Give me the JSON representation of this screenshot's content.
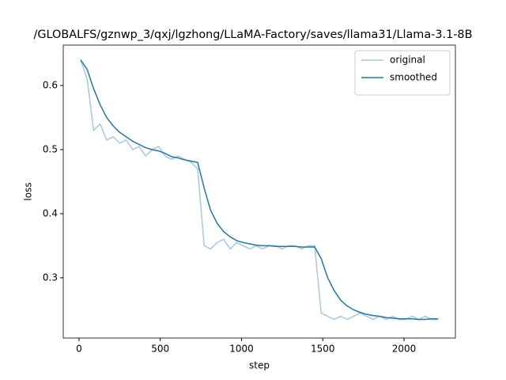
{
  "chart_data": {
    "type": "line",
    "title": "/GLOBALFS/gznwp_3/qxj/lgzhong/LLaMA-Factory/saves/llama31/Llama-3.1-8B",
    "x_label": "step",
    "y_label": "loss",
    "x": [
      10,
      50,
      90,
      130,
      170,
      210,
      250,
      290,
      330,
      370,
      410,
      450,
      490,
      530,
      570,
      610,
      650,
      690,
      730,
      770,
      810,
      850,
      890,
      930,
      970,
      1010,
      1050,
      1090,
      1130,
      1170,
      1210,
      1250,
      1290,
      1330,
      1370,
      1410,
      1450,
      1490,
      1530,
      1570,
      1610,
      1650,
      1690,
      1730,
      1770,
      1810,
      1850,
      1890,
      1930,
      1970,
      2010,
      2050,
      2090,
      2130,
      2170,
      2210
    ],
    "series": [
      {
        "name": "original",
        "color": "#a6c8e0",
        "values": [
          0.64,
          0.61,
          0.53,
          0.54,
          0.515,
          0.52,
          0.51,
          0.515,
          0.5,
          0.505,
          0.49,
          0.5,
          0.505,
          0.49,
          0.485,
          0.49,
          0.485,
          0.48,
          0.47,
          0.35,
          0.345,
          0.355,
          0.36,
          0.345,
          0.355,
          0.35,
          0.345,
          0.35,
          0.345,
          0.35,
          0.35,
          0.345,
          0.35,
          0.35,
          0.345,
          0.35,
          0.35,
          0.245,
          0.24,
          0.235,
          0.24,
          0.235,
          0.24,
          0.245,
          0.24,
          0.235,
          0.24,
          0.235,
          0.24,
          0.235,
          0.235,
          0.24,
          0.235,
          0.24,
          0.235,
          0.235
        ]
      },
      {
        "name": "smoothed",
        "color": "#1f77b4",
        "values": [
          0.64,
          0.625,
          0.595,
          0.57,
          0.55,
          0.537,
          0.527,
          0.52,
          0.513,
          0.508,
          0.503,
          0.5,
          0.498,
          0.494,
          0.489,
          0.487,
          0.484,
          0.482,
          0.48,
          0.44,
          0.405,
          0.385,
          0.372,
          0.364,
          0.358,
          0.355,
          0.353,
          0.351,
          0.35,
          0.35,
          0.349,
          0.349,
          0.349,
          0.349,
          0.348,
          0.348,
          0.348,
          0.33,
          0.3,
          0.28,
          0.265,
          0.256,
          0.25,
          0.246,
          0.243,
          0.241,
          0.24,
          0.238,
          0.237,
          0.236,
          0.236,
          0.236,
          0.235,
          0.235,
          0.236,
          0.236
        ]
      }
    ],
    "xlim": [
      -97,
      2316
    ],
    "xticks": [
      0,
      500,
      1000,
      1500,
      2000
    ],
    "ylim": [
      0.206,
      0.663
    ],
    "yticks": [
      0.3,
      0.4,
      0.5,
      0.6
    ],
    "legend": "upper right",
    "grid": false
  }
}
